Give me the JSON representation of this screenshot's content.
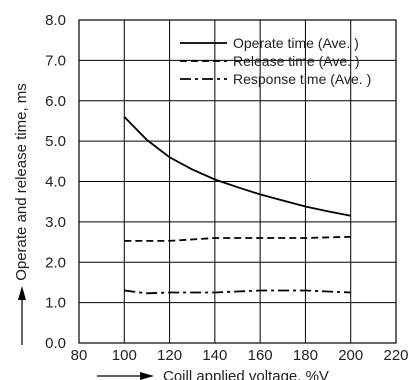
{
  "chart_data": {
    "type": "line",
    "x_axis": {
      "label": "Coill applied voltage, %V",
      "range": [
        80,
        220
      ],
      "ticks": [
        80,
        100,
        120,
        140,
        160,
        180,
        200,
        220
      ]
    },
    "y_axis": {
      "label": "Operate and release time, ms",
      "range": [
        0,
        8
      ],
      "ticks": [
        "0.0",
        "1.0",
        "2.0",
        "3.0",
        "4.0",
        "5.0",
        "6.0",
        "7.0",
        "8.0"
      ]
    },
    "grid": true,
    "legend_position": "top-right",
    "series": [
      {
        "name": "Operate time (Ave. )",
        "dash": "solid",
        "x": [
          100,
          110,
          120,
          130,
          140,
          150,
          160,
          170,
          180,
          190,
          200
        ],
        "y": [
          5.6,
          5.03,
          4.6,
          4.3,
          4.05,
          3.86,
          3.68,
          3.53,
          3.38,
          3.26,
          3.15
        ]
      },
      {
        "name": "Release time (Ave. )",
        "dash": "dashed",
        "x": [
          100,
          120,
          140,
          160,
          180,
          200
        ],
        "y": [
          2.53,
          2.53,
          2.6,
          2.6,
          2.6,
          2.63
        ]
      },
      {
        "name": "Response time (Ave. )",
        "dash": "dash-dot",
        "x": [
          100,
          110,
          120,
          140,
          160,
          180,
          200
        ],
        "y": [
          1.3,
          1.23,
          1.25,
          1.25,
          1.3,
          1.3,
          1.25
        ]
      }
    ]
  }
}
